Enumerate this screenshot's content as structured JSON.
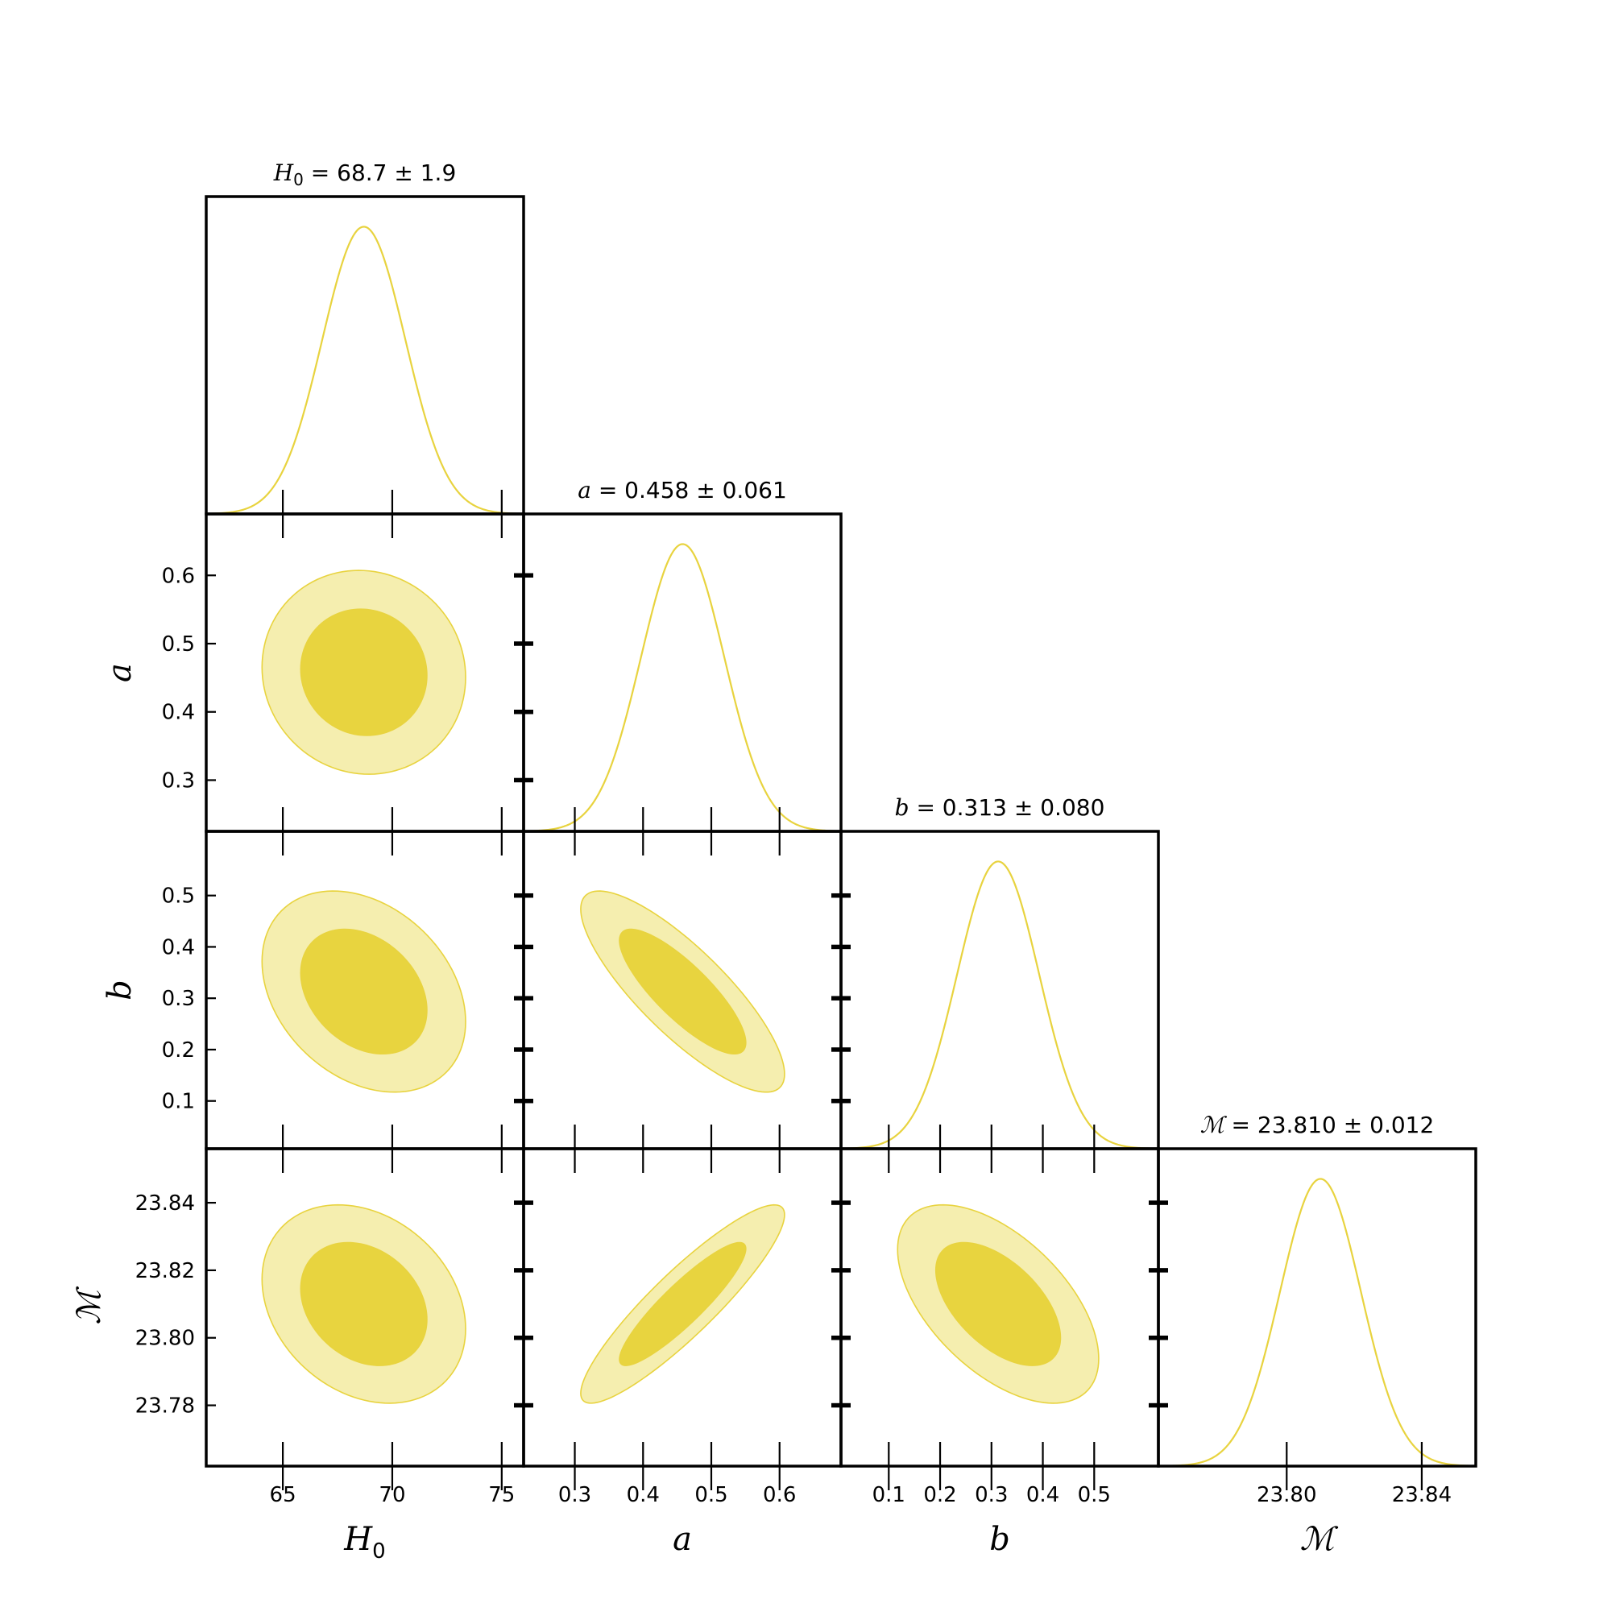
{
  "chart_data": {
    "type": "corner",
    "parameters": [
      {
        "key": "H0",
        "symbol": "H",
        "subscript": "0",
        "xlabel": "H₀",
        "title_rest": " = 68.7 ± 1.9",
        "mean": 68.7,
        "sigma": 1.9,
        "range": [
          61.5,
          76.0
        ],
        "ticks": [
          65,
          70,
          75
        ],
        "tick_labels": [
          "65",
          "70",
          "75"
        ]
      },
      {
        "key": "a",
        "symbol": "a",
        "subscript": "",
        "xlabel": "a",
        "title_rest": " = 0.458 ± 0.061",
        "mean": 0.458,
        "sigma": 0.061,
        "range": [
          0.225,
          0.69
        ],
        "ticks": [
          0.3,
          0.4,
          0.5,
          0.6
        ],
        "tick_labels": [
          "0.3",
          "0.4",
          "0.5",
          "0.6"
        ]
      },
      {
        "key": "b",
        "symbol": "b",
        "subscript": "",
        "xlabel": "b",
        "title_rest": " = 0.313 ± 0.080",
        "mean": 0.313,
        "sigma": 0.08,
        "range": [
          0.007,
          0.625
        ],
        "ticks": [
          0.1,
          0.2,
          0.3,
          0.4,
          0.5
        ],
        "tick_labels": [
          "0.1",
          "0.2",
          "0.3",
          "0.4",
          "0.5"
        ]
      },
      {
        "key": "M",
        "symbol": "ℳ",
        "subscript": "",
        "xlabel": "ℳ",
        "title_rest": " = 23.810 ± 0.012",
        "mean": 23.81,
        "sigma": 0.012,
        "range": [
          23.762,
          23.856
        ],
        "ticks": [
          23.8,
          23.84
        ],
        "tick_labels": [
          "23.80",
          "23.84"
        ],
        "y_ticks": [
          23.78,
          23.8,
          23.82,
          23.84
        ],
        "y_tick_labels": [
          "23.78",
          "23.80",
          "23.82",
          "23.84"
        ]
      }
    ],
    "correlations": {
      "H0-a": -0.05,
      "H0-b": -0.3,
      "H0-M": -0.25,
      "a-b": -0.82,
      "a-M": 0.9,
      "b-M": -0.55
    },
    "contour_levels": [
      "68%",
      "95%"
    ],
    "grid": false,
    "colors": {
      "line": "#e8d33f",
      "inner": "#e8d43f",
      "outer": "#f5eeaf",
      "frame": "#000000"
    }
  }
}
